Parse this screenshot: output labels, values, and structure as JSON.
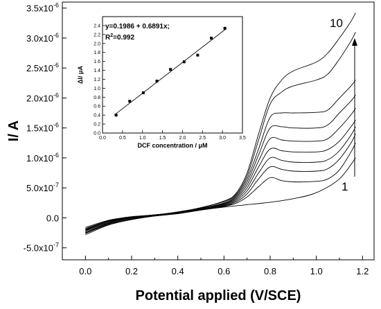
{
  "chart_data": [
    {
      "type": "line",
      "xlabel": "Potential applied (V/SCE)",
      "ylabel": "I/ A",
      "xlim": [
        -0.1,
        1.25
      ],
      "ylim": [
        -7e-07,
        3.6e-06
      ],
      "x_ticks": [
        {
          "label": "0.0",
          "value": 0.0
        },
        {
          "label": "0.2",
          "value": 0.2
        },
        {
          "label": "0.4",
          "value": 0.4
        },
        {
          "label": "0.6",
          "value": 0.6
        },
        {
          "label": "0.8",
          "value": 0.8
        },
        {
          "label": "1.0",
          "value": 1.0
        },
        {
          "label": "1.2",
          "value": 1.2
        }
      ],
      "y_ticks": [
        {
          "mant": "-5.0x10",
          "exp": "-7",
          "value": -5e-07
        },
        {
          "mant": "0.0",
          "exp": "",
          "value": 0
        },
        {
          "mant": "5.0x10",
          "exp": "-7",
          "value": 5e-07
        },
        {
          "mant": "1.0x10",
          "exp": "-6",
          "value": 1e-06
        },
        {
          "mant": "1.5x10",
          "exp": "-6",
          "value": 1.5e-06
        },
        {
          "mant": "2.0x10",
          "exp": "-6",
          "value": 2e-06
        },
        {
          "mant": "2.5x10",
          "exp": "-6",
          "value": 2.5e-06
        },
        {
          "mant": "3.0x10",
          "exp": "-6",
          "value": 3e-06
        },
        {
          "mant": "3.5x10",
          "exp": "-6",
          "value": 3.5e-06
        }
      ],
      "series": [
        {
          "x": [
            0.0,
            0.1,
            0.2,
            0.3,
            0.4,
            0.5,
            0.6,
            0.7,
            0.8,
            0.9,
            1.0,
            1.1,
            1.17
          ],
          "y": [
            -2.8e-07,
            -1.2e-07,
            -3e-08,
            3e-08,
            7e-08,
            1.3e-07,
            1.8e-07,
            2.2e-07,
            2.6e-07,
            3.2e-07,
            4.2e-07,
            6.5e-07,
            1e-06
          ]
        },
        {
          "x": [
            0.0,
            0.1,
            0.2,
            0.3,
            0.4,
            0.5,
            0.6,
            0.65,
            0.7,
            0.75,
            0.8,
            0.85,
            0.9,
            1.0,
            1.05,
            1.1,
            1.15,
            1.17
          ],
          "y": [
            -2.6e-07,
            -1.1e-07,
            -2e-08,
            3e-08,
            7e-08,
            1.3e-07,
            1.9e-07,
            2.4e-07,
            3.5e-07,
            5.2e-07,
            6.7e-07,
            6.2e-07,
            6e-07,
            6.1e-07,
            6.5e-07,
            8e-07,
            1.1e-06,
            1.25e-06
          ]
        },
        {
          "x": [
            0.0,
            0.1,
            0.2,
            0.3,
            0.4,
            0.5,
            0.6,
            0.65,
            0.7,
            0.75,
            0.8,
            0.85,
            0.9,
            1.0,
            1.05,
            1.1,
            1.15,
            1.17
          ],
          "y": [
            -2.5e-07,
            -1e-07,
            -1e-08,
            4e-08,
            8e-08,
            1.4e-07,
            2e-07,
            2.6e-07,
            4e-07,
            6.5e-07,
            8.5e-07,
            8.1e-07,
            7.8e-07,
            7.8e-07,
            8.2e-07,
            9.8e-07,
            1.25e-06,
            1.4e-06
          ]
        },
        {
          "x": [
            0.0,
            0.1,
            0.2,
            0.3,
            0.4,
            0.5,
            0.6,
            0.65,
            0.7,
            0.75,
            0.8,
            0.85,
            0.9,
            1.0,
            1.05,
            1.1,
            1.15,
            1.17
          ],
          "y": [
            -2.4e-07,
            -9e-08,
            0,
            4e-08,
            8e-08,
            1.4e-07,
            2.1e-07,
            2.8e-07,
            4.5e-07,
            7.5e-07,
            1e-06,
            9.6e-07,
            9.3e-07,
            9.3e-07,
            9.7e-07,
            1.12e-06,
            1.38e-06,
            1.52e-06
          ]
        },
        {
          "x": [
            0.0,
            0.1,
            0.2,
            0.3,
            0.4,
            0.5,
            0.6,
            0.65,
            0.7,
            0.75,
            0.8,
            0.85,
            0.9,
            1.0,
            1.05,
            1.1,
            1.15,
            1.17
          ],
          "y": [
            -2.2e-07,
            -8e-08,
            0,
            4e-08,
            8e-08,
            1.5e-07,
            2.2e-07,
            3e-07,
            5e-07,
            8.5e-07,
            1.15e-06,
            1.12e-06,
            1.1e-06,
            1.1e-06,
            1.14e-06,
            1.28e-06,
            1.52e-06,
            1.63e-06
          ]
        },
        {
          "x": [
            0.0,
            0.1,
            0.2,
            0.3,
            0.4,
            0.5,
            0.6,
            0.65,
            0.7,
            0.75,
            0.8,
            0.85,
            0.9,
            1.0,
            1.05,
            1.1,
            1.15,
            1.17
          ],
          "y": [
            -2.1e-07,
            -7e-08,
            0,
            4e-08,
            8e-08,
            1.5e-07,
            2.3e-07,
            3.2e-07,
            5.5e-07,
            9.5e-07,
            1.32e-06,
            1.3e-06,
            1.28e-06,
            1.28e-06,
            1.32e-06,
            1.5e-06,
            1.72e-06,
            1.83e-06
          ]
        },
        {
          "x": [
            0.0,
            0.1,
            0.2,
            0.3,
            0.4,
            0.5,
            0.6,
            0.65,
            0.7,
            0.75,
            0.8,
            0.85,
            0.9,
            1.0,
            1.05,
            1.1,
            1.15,
            1.17
          ],
          "y": [
            -2e-07,
            -6e-08,
            1e-08,
            5e-08,
            9e-08,
            1.6e-07,
            2.4e-07,
            3.4e-07,
            6e-07,
            1.05e-06,
            1.5e-06,
            1.52e-06,
            1.5e-06,
            1.5e-06,
            1.55e-06,
            1.75e-06,
            1.95e-06,
            2.05e-06
          ]
        },
        {
          "x": [
            0.0,
            0.1,
            0.2,
            0.3,
            0.4,
            0.5,
            0.6,
            0.65,
            0.7,
            0.75,
            0.8,
            0.85,
            0.9,
            1.0,
            1.05,
            1.1,
            1.15,
            1.17
          ],
          "y": [
            -1.9e-07,
            -5e-08,
            1e-08,
            5e-08,
            9e-08,
            1.6e-07,
            2.5e-07,
            3.6e-07,
            6.5e-07,
            1.15e-06,
            1.68e-06,
            1.75e-06,
            1.75e-06,
            1.76e-06,
            1.8e-06,
            2e-06,
            2.2e-06,
            2.3e-06
          ]
        },
        {
          "x": [
            0.0,
            0.1,
            0.2,
            0.3,
            0.4,
            0.5,
            0.6,
            0.65,
            0.7,
            0.75,
            0.8,
            0.85,
            0.9,
            1.0,
            1.05,
            1.1,
            1.15,
            1.17
          ],
          "y": [
            -1.8e-07,
            -5e-08,
            1e-08,
            5e-08,
            9e-08,
            1.7e-07,
            2.7e-07,
            3.8e-07,
            7e-07,
            1.3e-06,
            1.9e-06,
            2.1e-06,
            2.2e-06,
            2.3e-06,
            2.4e-06,
            2.65e-06,
            2.95e-06,
            3.1e-06
          ]
        },
        {
          "x": [
            0.0,
            0.1,
            0.2,
            0.3,
            0.4,
            0.5,
            0.6,
            0.65,
            0.7,
            0.75,
            0.8,
            0.85,
            0.9,
            1.0,
            1.05,
            1.1,
            1.15,
            1.17
          ],
          "y": [
            -1.6e-07,
            -4e-08,
            2e-08,
            5e-08,
            1e-07,
            1.7e-07,
            2.8e-07,
            4e-07,
            7.5e-07,
            1.4e-06,
            2e-06,
            2.3e-06,
            2.45e-06,
            2.6e-06,
            2.75e-06,
            3e-06,
            3.28e-06,
            3.42e-06
          ]
        }
      ],
      "curve_labels": {
        "first": "1",
        "last": "10"
      }
    },
    {
      "type": "scatter",
      "xlabel": "DCF concentration / μM",
      "ylabel": "ΔI/ μA",
      "xlim": [
        0.0,
        3.5
      ],
      "ylim": [
        0.0,
        2.6
      ],
      "x_ticks": [
        "0.0",
        "0.5",
        "1.0",
        "1.5",
        "2.0",
        "2.5",
        "3.0",
        "3.5"
      ],
      "y_ticks": [
        "0.0",
        "0.2",
        "0.4",
        "0.6",
        "0.8",
        "1.0",
        "1.2",
        "1.4",
        "1.6",
        "1.8",
        "2.0",
        "2.2",
        "2.4"
      ],
      "x": [
        0.34,
        0.68,
        1.02,
        1.36,
        1.7,
        2.04,
        2.38,
        2.72,
        3.06
      ],
      "y": [
        0.4,
        0.71,
        0.9,
        1.16,
        1.42,
        1.59,
        1.74,
        2.12,
        2.34
      ],
      "fit": {
        "intercept": 0.1986,
        "slope": 0.6891
      },
      "equation": "y=0.1986 + 0.6891x;",
      "r2_label": "R",
      "r2_sup": "2",
      "r2_value": "=0.992"
    }
  ]
}
